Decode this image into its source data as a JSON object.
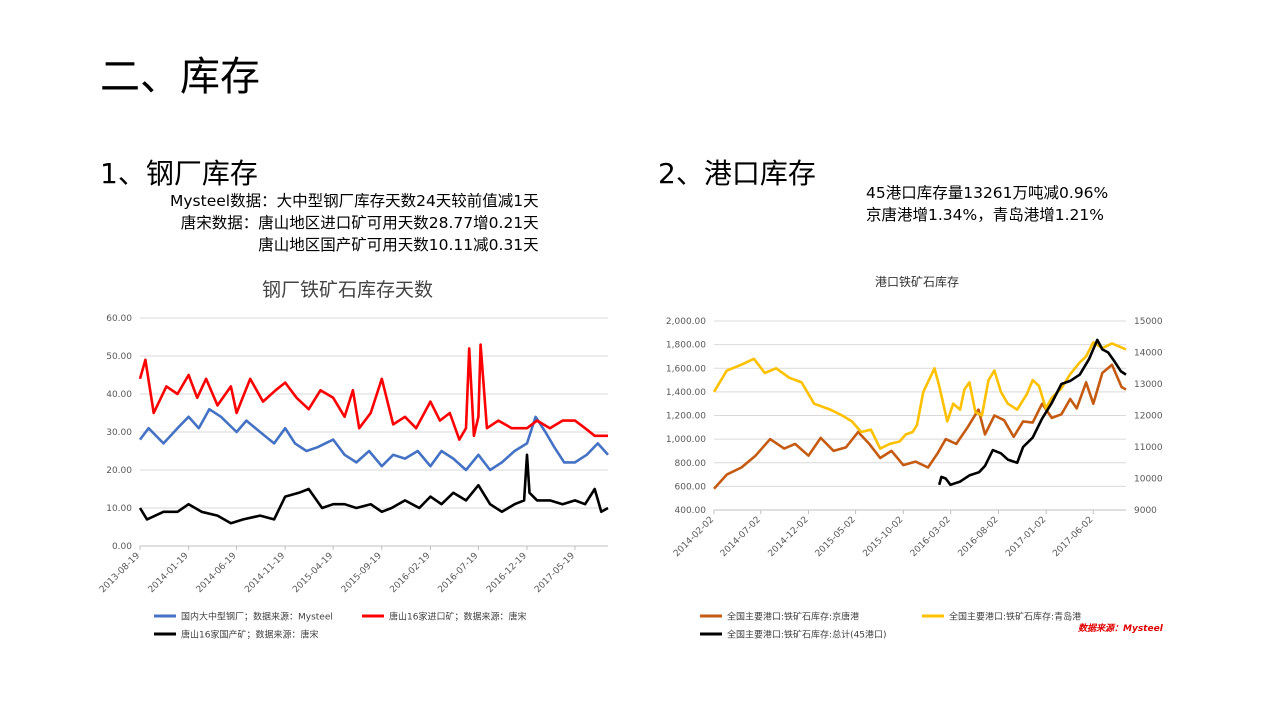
{
  "page_title": "二、库存",
  "section1": {
    "heading": "1、钢厂库存",
    "notes": [
      "Mysteel数据：大中型钢厂库存天数24天较前值减1天",
      "唐宋数据：唐山地区进口矿可用天数28.77增0.21天",
      "唐山地区国产矿可用天数10.11减0.31天"
    ]
  },
  "section2": {
    "heading": "2、港口库存",
    "notes": [
      "45港口库存量13261万吨减0.96%",
      "京唐港增1.34%，青岛港增1.21%"
    ]
  },
  "source_credit": "数据来源：Mysteel",
  "chart_data": [
    {
      "type": "line",
      "title": "钢厂铁矿石库存天数",
      "x_ticks": [
        "2013-08-19",
        "2014-01-19",
        "2014-06-19",
        "2014-11-19",
        "2015-04-19",
        "2015-09-19",
        "2016-02-19",
        "2016-07-19",
        "2016-12-19",
        "2017-05-19"
      ],
      "x_range": [
        "2013-08-19",
        "2017-08-31"
      ],
      "y_ticks": [
        "0.00",
        "10.00",
        "20.00",
        "30.00",
        "40.00",
        "50.00",
        "60.00"
      ],
      "ylim": [
        0,
        60
      ],
      "grid": true,
      "legend_position": "bottom",
      "colors": {
        "mysteel": "#4472C4",
        "import": "#FF0000",
        "domestic": "#000000"
      },
      "series": [
        {
          "name": "国内大中型钢厂；数据来源：Mysteel",
          "x": [
            "2013-08-19",
            "2013-09-15",
            "2013-11-01",
            "2013-12-15",
            "2014-01-19",
            "2014-02-20",
            "2014-03-25",
            "2014-05-01",
            "2014-06-19",
            "2014-07-20",
            "2014-09-01",
            "2014-10-15",
            "2014-11-19",
            "2014-12-20",
            "2015-01-25",
            "2015-03-01",
            "2015-04-19",
            "2015-05-25",
            "2015-07-01",
            "2015-08-10",
            "2015-09-19",
            "2015-10-25",
            "2015-12-01",
            "2016-01-10",
            "2016-02-19",
            "2016-03-25",
            "2016-05-01",
            "2016-06-10",
            "2016-07-19",
            "2016-08-25",
            "2016-10-01",
            "2016-11-10",
            "2016-12-19",
            "2017-01-15",
            "2017-02-15",
            "2017-03-15",
            "2017-04-15",
            "2017-05-19",
            "2017-06-25",
            "2017-07-30",
            "2017-08-31"
          ],
          "values": [
            28,
            31,
            27,
            31,
            34,
            31,
            36,
            34,
            30,
            33,
            30,
            27,
            31,
            27,
            25,
            26,
            28,
            24,
            22,
            25,
            21,
            24,
            23,
            25,
            21,
            25,
            23,
            20,
            24,
            20,
            22,
            25,
            27,
            34,
            30,
            26,
            22,
            22,
            24,
            27,
            24
          ]
        },
        {
          "name": "唐山16家进口矿；数据来源：唐宋",
          "x": [
            "2013-08-19",
            "2013-09-05",
            "2013-10-01",
            "2013-11-10",
            "2013-12-15",
            "2014-01-19",
            "2014-02-15",
            "2014-03-15",
            "2014-04-20",
            "2014-06-01",
            "2014-06-19",
            "2014-08-01",
            "2014-09-10",
            "2014-10-20",
            "2014-11-19",
            "2014-12-25",
            "2015-02-01",
            "2015-03-10",
            "2015-04-19",
            "2015-05-25",
            "2015-06-20",
            "2015-07-10",
            "2015-08-15",
            "2015-09-19",
            "2015-10-25",
            "2015-12-01",
            "2016-01-05",
            "2016-02-19",
            "2016-03-20",
            "2016-04-20",
            "2016-05-20",
            "2016-06-10",
            "2016-06-20",
            "2016-07-05",
            "2016-07-19",
            "2016-07-26",
            "2016-08-15",
            "2016-09-20",
            "2016-11-01",
            "2016-12-19",
            "2017-01-20",
            "2017-03-01",
            "2017-04-10",
            "2017-05-19",
            "2017-06-20",
            "2017-07-20",
            "2017-08-31"
          ],
          "values": [
            44,
            49,
            35,
            42,
            40,
            45,
            39,
            44,
            37,
            42,
            35,
            44,
            38,
            41,
            43,
            39,
            36,
            41,
            39,
            34,
            41,
            31,
            35,
            44,
            32,
            34,
            31,
            38,
            33,
            35,
            28,
            31,
            52,
            29,
            34,
            53,
            31,
            33,
            31,
            31,
            33,
            31,
            33,
            33,
            31,
            29,
            29
          ]
        },
        {
          "name": "唐山16家国产矿；数据来源：唐宋",
          "x": [
            "2013-08-19",
            "2013-09-10",
            "2013-11-01",
            "2013-12-15",
            "2014-01-19",
            "2014-03-01",
            "2014-04-20",
            "2014-06-01",
            "2014-07-10",
            "2014-09-01",
            "2014-10-15",
            "2014-11-19",
            "2015-01-01",
            "2015-02-01",
            "2015-03-15",
            "2015-04-19",
            "2015-05-25",
            "2015-07-01",
            "2015-08-15",
            "2015-09-19",
            "2015-10-20",
            "2015-12-01",
            "2016-01-15",
            "2016-02-19",
            "2016-03-25",
            "2016-05-01",
            "2016-06-10",
            "2016-07-19",
            "2016-08-25",
            "2016-10-01",
            "2016-11-10",
            "2016-12-10",
            "2016-12-19",
            "2016-12-27",
            "2017-01-20",
            "2017-03-01",
            "2017-04-10",
            "2017-05-19",
            "2017-06-20",
            "2017-07-20",
            "2017-08-10",
            "2017-08-31"
          ],
          "values": [
            10,
            7,
            9,
            9,
            11,
            9,
            8,
            6,
            7,
            8,
            7,
            13,
            14,
            15,
            10,
            11,
            11,
            10,
            11,
            9,
            10,
            12,
            10,
            13,
            11,
            14,
            12,
            16,
            11,
            9,
            11,
            12,
            24,
            14,
            12,
            12,
            11,
            12,
            11,
            15,
            9,
            10
          ]
        }
      ]
    },
    {
      "type": "line",
      "title": "港口铁矿石库存",
      "x_ticks": [
        "2014-02-02",
        "2014-07-02",
        "2014-12-02",
        "2015-05-02",
        "2015-10-02",
        "2016-03-02",
        "2016-08-02",
        "2017-01-02",
        "2017-06-02"
      ],
      "x_range": [
        "2014-02-02",
        "2017-09-15"
      ],
      "y_ticks": [
        "400.00",
        "600.00",
        "800.00",
        "1,000.00",
        "1,200.00",
        "1,400.00",
        "1,600.00",
        "1,800.00",
        "2,000.00"
      ],
      "ylim": [
        400,
        2000
      ],
      "y2_ticks": [
        "9000",
        "10000",
        "11000",
        "12000",
        "13000",
        "14000",
        "15000"
      ],
      "y2lim": [
        9000,
        15000
      ],
      "grid": true,
      "legend_position": "bottom",
      "colors": {
        "jingtang": "#C55A11",
        "qingdao": "#FFC000",
        "total": "#000000"
      },
      "series": [
        {
          "name": "全国主要港口:铁矿石库存:京唐港",
          "axis": "left",
          "x": [
            "2014-02-02",
            "2014-03-15",
            "2014-05-01",
            "2014-06-15",
            "2014-08-01",
            "2014-09-15",
            "2014-10-20",
            "2014-12-02",
            "2015-01-10",
            "2015-02-20",
            "2015-04-01",
            "2015-05-10",
            "2015-06-15",
            "2015-07-20",
            "2015-08-25",
            "2015-10-02",
            "2015-11-10",
            "2015-12-20",
            "2016-01-20",
            "2016-02-15",
            "2016-03-20",
            "2016-04-25",
            "2016-05-30",
            "2016-06-20",
            "2016-07-20",
            "2016-08-20",
            "2016-09-20",
            "2016-10-20",
            "2016-11-20",
            "2016-12-20",
            "2017-01-20",
            "2017-02-20",
            "2017-03-20",
            "2017-04-10",
            "2017-05-10",
            "2017-06-02",
            "2017-07-01",
            "2017-08-01",
            "2017-09-01",
            "2017-09-15"
          ],
          "values": [
            580,
            700,
            760,
            860,
            1000,
            920,
            960,
            860,
            1010,
            900,
            930,
            1060,
            960,
            840,
            900,
            780,
            810,
            760,
            880,
            1000,
            960,
            1100,
            1250,
            1040,
            1200,
            1160,
            1020,
            1150,
            1140,
            1300,
            1180,
            1210,
            1340,
            1260,
            1480,
            1300,
            1560,
            1630,
            1440,
            1420
          ]
        },
        {
          "name": "全国主要港口:铁矿石库存:青岛港",
          "axis": "left",
          "x": [
            "2014-02-02",
            "2014-03-15",
            "2014-05-01",
            "2014-06-10",
            "2014-07-15",
            "2014-08-20",
            "2014-10-01",
            "2014-11-10",
            "2014-12-20",
            "2015-02-10",
            "2015-03-20",
            "2015-04-20",
            "2015-05-20",
            "2015-06-20",
            "2015-07-20",
            "2015-08-20",
            "2015-09-20",
            "2015-10-10",
            "2015-11-01",
            "2015-11-15",
            "2015-12-05",
            "2016-01-10",
            "2016-01-25",
            "2016-02-20",
            "2016-03-10",
            "2016-04-01",
            "2016-04-15",
            "2016-05-01",
            "2016-05-20",
            "2016-06-10",
            "2016-07-01",
            "2016-07-20",
            "2016-08-10",
            "2016-09-01",
            "2016-10-01",
            "2016-11-01",
            "2016-11-20",
            "2016-12-10",
            "2017-01-01",
            "2017-01-20",
            "2017-02-20",
            "2017-03-20",
            "2017-04-20",
            "2017-05-10",
            "2017-06-02",
            "2017-07-01",
            "2017-08-01",
            "2017-09-15"
          ],
          "values": [
            1400,
            1580,
            1630,
            1680,
            1560,
            1600,
            1520,
            1480,
            1300,
            1250,
            1200,
            1150,
            1060,
            1080,
            920,
            960,
            980,
            1040,
            1060,
            1120,
            1400,
            1600,
            1450,
            1150,
            1300,
            1250,
            1420,
            1480,
            1230,
            1200,
            1500,
            1580,
            1400,
            1300,
            1250,
            1380,
            1500,
            1450,
            1260,
            1350,
            1430,
            1550,
            1650,
            1700,
            1820,
            1770,
            1810,
            1760
          ]
        },
        {
          "name": "全国主要港口:铁矿石库存:总计(45港口)",
          "axis": "right",
          "x": [
            "2016-01-25",
            "2016-02-01",
            "2016-02-15",
            "2016-03-01",
            "2016-04-01",
            "2016-05-01",
            "2016-06-01",
            "2016-06-20",
            "2016-07-15",
            "2016-08-10",
            "2016-09-01",
            "2016-10-01",
            "2016-10-20",
            "2016-11-20",
            "2016-12-20",
            "2017-01-20",
            "2017-02-20",
            "2017-03-20",
            "2017-04-20",
            "2017-05-20",
            "2017-06-15",
            "2017-07-01",
            "2017-07-20",
            "2017-08-10",
            "2017-08-30",
            "2017-09-15"
          ],
          "values": [
            9800,
            10050,
            10000,
            9800,
            9900,
            10100,
            10200,
            10400,
            10900,
            10800,
            10600,
            10500,
            11000,
            11300,
            11900,
            12400,
            13000,
            13100,
            13300,
            13800,
            14400,
            14100,
            14000,
            13700,
            13400,
            13300
          ]
        }
      ]
    }
  ]
}
